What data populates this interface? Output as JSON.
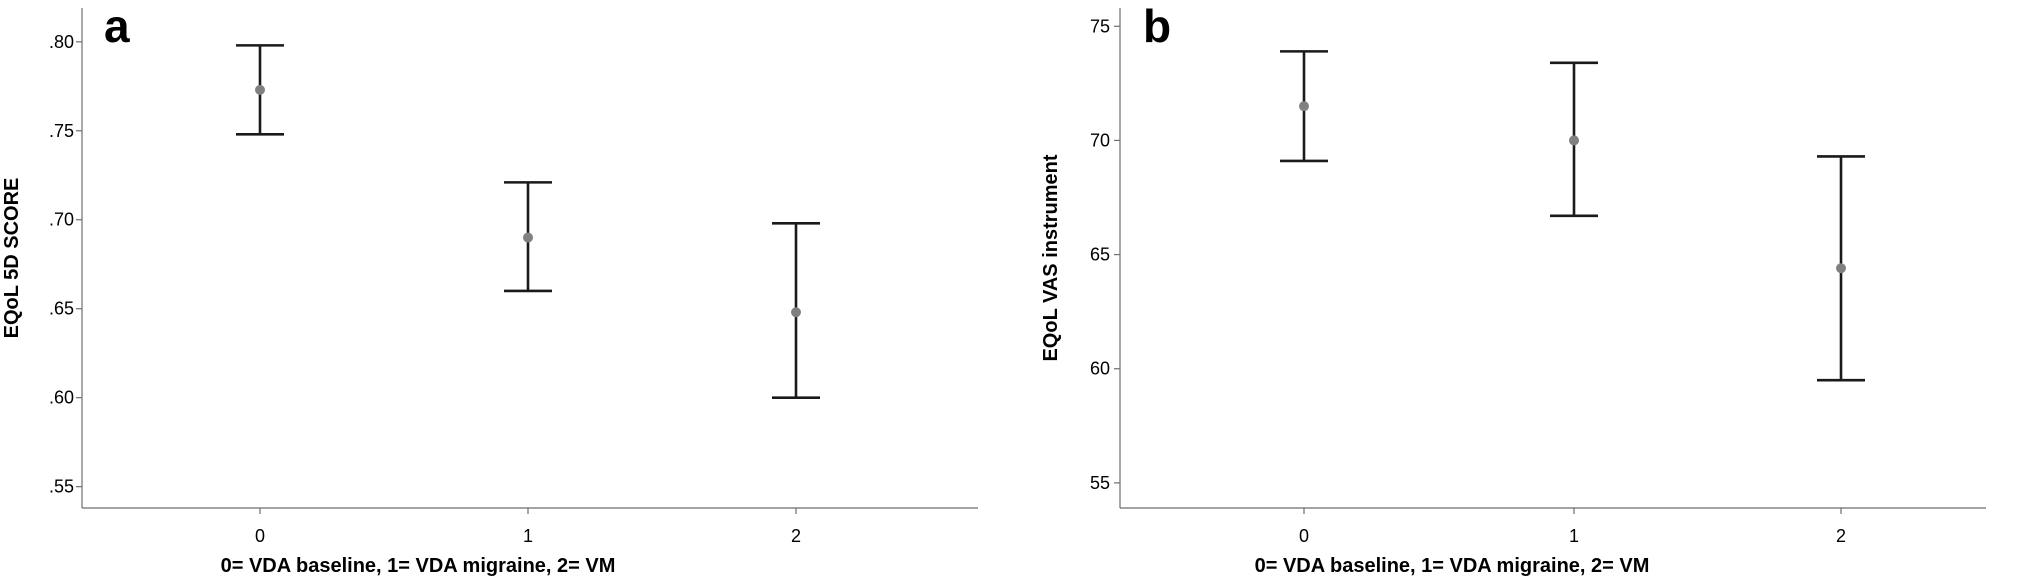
{
  "chart_data": [
    {
      "panel_label": "a",
      "type": "scatter",
      "subtype": "error-bar",
      "categories": [
        "0",
        "1",
        "2"
      ],
      "points": [
        {
          "x": "0",
          "mean": 0.773,
          "lower": 0.748,
          "upper": 0.798
        },
        {
          "x": "1",
          "mean": 0.69,
          "lower": 0.66,
          "upper": 0.721
        },
        {
          "x": "2",
          "mean": 0.648,
          "lower": 0.6,
          "upper": 0.698
        }
      ],
      "xlabel": "0= VDA baseline, 1= VDA migraine, 2= VM",
      "ylabel": "EQoL 5D SCORE",
      "ylim": [
        0.538,
        0.819
      ],
      "yticks": [
        0.55,
        0.6,
        0.65,
        0.7,
        0.75,
        0.8
      ],
      "ytick_labels": [
        ".55",
        ".60",
        ".65",
        ".70",
        ".75",
        ".80"
      ],
      "grid": false,
      "point_color": "#808080",
      "bar_color": "#1a1a1a"
    },
    {
      "panel_label": "b",
      "type": "scatter",
      "subtype": "error-bar",
      "categories": [
        "0",
        "1",
        "2"
      ],
      "points": [
        {
          "x": "0",
          "mean": 71.5,
          "lower": 69.1,
          "upper": 73.9
        },
        {
          "x": "1",
          "mean": 70.0,
          "lower": 66.7,
          "upper": 73.4
        },
        {
          "x": "2",
          "mean": 64.4,
          "lower": 59.5,
          "upper": 69.3
        }
      ],
      "xlabel": "0= VDA baseline, 1= VDA migraine, 2= VM",
      "ylabel": "EQoL VAS instrument",
      "ylim": [
        53.9,
        75.8
      ],
      "yticks": [
        55,
        60,
        65,
        70,
        75
      ],
      "ytick_labels": [
        "55",
        "60",
        "65",
        "70",
        "75"
      ],
      "grid": false,
      "point_color": "#808080",
      "bar_color": "#1a1a1a"
    }
  ]
}
